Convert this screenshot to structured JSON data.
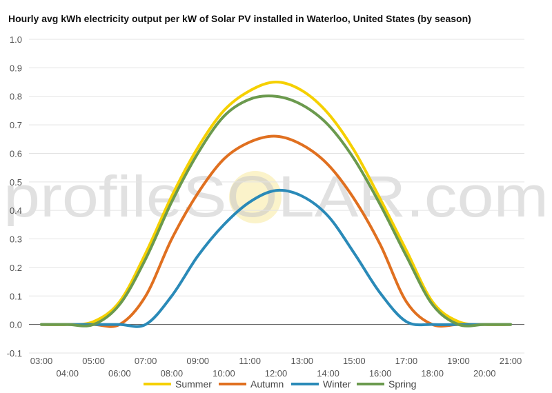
{
  "chart_data": {
    "type": "line",
    "title": "Hourly avg kWh electricity output per kW of Solar PV installed in Waterloo, United States (by season)",
    "watermark": "profileSOLAR.com",
    "xlabel": "",
    "ylabel": "",
    "x": [
      "03:00",
      "04:00",
      "05:00",
      "06:00",
      "07:00",
      "08:00",
      "09:00",
      "10:00",
      "11:00",
      "12:00",
      "13:00",
      "14:00",
      "15:00",
      "16:00",
      "17:00",
      "18:00",
      "19:00",
      "20:00",
      "21:00"
    ],
    "ylim": [
      -0.1,
      1.0
    ],
    "yticks": [
      "-0.1",
      "0.0",
      "0.1",
      "0.2",
      "0.3",
      "0.4",
      "0.5",
      "0.6",
      "0.7",
      "0.8",
      "0.9",
      "1.0"
    ],
    "grid": true,
    "legend_position": "bottom",
    "series": [
      {
        "name": "Summer",
        "color": "#f5d000",
        "values": [
          0,
          0,
          0.01,
          0.08,
          0.25,
          0.45,
          0.62,
          0.75,
          0.82,
          0.85,
          0.82,
          0.74,
          0.61,
          0.44,
          0.26,
          0.08,
          0.01,
          0,
          0
        ]
      },
      {
        "name": "Autumn",
        "color": "#e07020",
        "values": [
          0,
          0,
          0,
          0,
          0.1,
          0.3,
          0.46,
          0.58,
          0.64,
          0.66,
          0.63,
          0.56,
          0.44,
          0.28,
          0.08,
          0,
          0,
          0,
          0
        ]
      },
      {
        "name": "Winter",
        "color": "#2a8ab8",
        "values": [
          0,
          0,
          0,
          0,
          0,
          0.1,
          0.24,
          0.35,
          0.43,
          0.47,
          0.45,
          0.38,
          0.25,
          0.11,
          0.01,
          0,
          0,
          0,
          0
        ]
      },
      {
        "name": "Spring",
        "color": "#6b9a4e",
        "values": [
          0,
          0,
          0,
          0.07,
          0.23,
          0.43,
          0.6,
          0.73,
          0.79,
          0.8,
          0.77,
          0.7,
          0.58,
          0.42,
          0.24,
          0.07,
          0,
          0,
          0
        ]
      }
    ]
  }
}
